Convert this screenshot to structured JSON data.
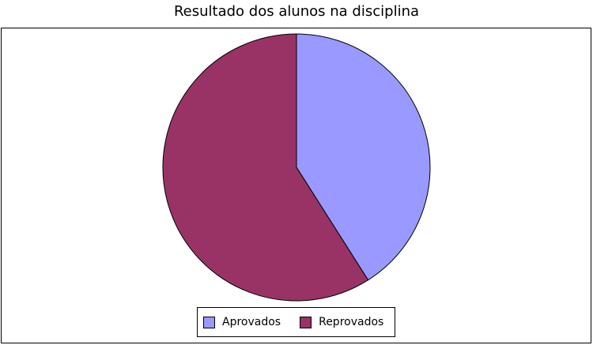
{
  "chart_data": {
    "type": "pie",
    "title": "Resultado dos alunos na disciplina",
    "slices": [
      {
        "name": "Aprovados",
        "value": 41,
        "color": "#9999ff"
      },
      {
        "name": "Reprovados",
        "value": 59,
        "color": "#993366"
      }
    ],
    "legend_position": "bottom",
    "grid": false
  }
}
